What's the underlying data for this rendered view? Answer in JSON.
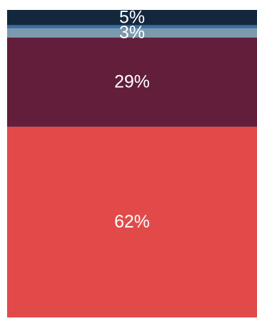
{
  "chart_data": {
    "type": "bar",
    "stacked": true,
    "orientation": "vertical",
    "categories": [
      ""
    ],
    "series": [
      {
        "values": [
          5
        ],
        "color": "#14283d",
        "data_label": "5%"
      },
      {
        "values": [
          1
        ],
        "color": "#3a6ea5",
        "data_label": ""
      },
      {
        "values": [
          3
        ],
        "color": "#7c9aae",
        "data_label": "3%"
      },
      {
        "values": [
          29
        ],
        "color": "#621e3b",
        "data_label": "29%"
      },
      {
        "values": [
          62
        ],
        "color": "#e24a4a",
        "data_label": "62%"
      }
    ],
    "ylim": [
      0,
      100
    ],
    "grid": false,
    "legend": "none",
    "title": "",
    "xlabel": "",
    "ylabel": ""
  }
}
